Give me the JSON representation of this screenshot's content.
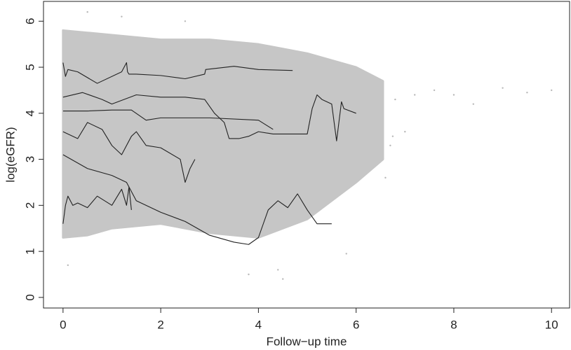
{
  "chart_data": {
    "type": "line",
    "x_label": "Follow−up time",
    "y_label": "log(eGFR)",
    "xlim": [
      -0.4,
      10.37
    ],
    "ylim": [
      -0.23,
      6.43
    ],
    "xticks": [
      0,
      2,
      4,
      6,
      8,
      10
    ],
    "yticks": [
      0,
      1,
      2,
      3,
      4,
      5,
      6
    ],
    "series": [
      {
        "type": "band",
        "color": "#c6c6c6",
        "x": [
          0,
          0.5,
          1,
          2,
          3,
          4,
          5,
          6,
          6.55
        ],
        "upper": [
          5.8,
          5.75,
          5.7,
          5.6,
          5.6,
          5.5,
          5.3,
          5.0,
          4.7
        ],
        "lower": [
          1.3,
          1.35,
          1.5,
          1.6,
          1.4,
          1.3,
          1.7,
          2.5,
          3.0
        ]
      },
      {
        "type": "scatter",
        "color": "#b8b8b8",
        "x": [
          6.7,
          6.8,
          7.0,
          7.2,
          7.6,
          8.0,
          8.4,
          9.0,
          9.5,
          10.0,
          6.75,
          0.1,
          4.5,
          3.8,
          5.8,
          1.2,
          2.5,
          0.5,
          6.6,
          4.4
        ],
        "values": [
          3.3,
          4.3,
          3.6,
          4.4,
          4.5,
          4.4,
          4.2,
          4.55,
          4.45,
          4.5,
          3.5,
          0.7,
          0.4,
          0.5,
          0.95,
          6.1,
          6.0,
          6.2,
          2.6,
          0.6
        ]
      },
      {
        "type": "line",
        "color": "#222222",
        "x": [
          0,
          0.05,
          0.1,
          0.3,
          0.7,
          1.2,
          1.3,
          1.32,
          1.35,
          1.5,
          2.0,
          2.5,
          2.9,
          2.92,
          3.5,
          4.0,
          4.7
        ],
        "values": [
          5.1,
          4.8,
          4.95,
          4.9,
          4.65,
          4.9,
          5.1,
          4.9,
          4.85,
          4.85,
          4.82,
          4.75,
          4.85,
          4.95,
          5.02,
          4.95,
          4.93
        ]
      },
      {
        "type": "line",
        "color": "#222222",
        "x": [
          0,
          0.4,
          0.8,
          1.0,
          1.5,
          2.0,
          2.5,
          2.9,
          3.1,
          3.2,
          3.3,
          3.4,
          3.6,
          3.8,
          4.0,
          4.3,
          5.0,
          5.1,
          5.2,
          5.3,
          5.5,
          5.6,
          5.7,
          5.75,
          6.0
        ],
        "values": [
          4.35,
          4.45,
          4.3,
          4.2,
          4.4,
          4.35,
          4.35,
          4.3,
          4.0,
          3.9,
          3.8,
          3.45,
          3.45,
          3.5,
          3.6,
          3.55,
          3.55,
          4.1,
          4.4,
          4.3,
          4.2,
          3.4,
          4.25,
          4.1,
          4.0
        ]
      },
      {
        "type": "line",
        "color": "#222222",
        "x": [
          0,
          0.5,
          1.0,
          1.4,
          1.7,
          2.0,
          3.0,
          4.0,
          4.3
        ],
        "values": [
          4.05,
          4.05,
          4.07,
          4.07,
          3.85,
          3.9,
          3.9,
          3.85,
          3.65
        ]
      },
      {
        "type": "line",
        "color": "#222222",
        "x": [
          0,
          0.3,
          0.5,
          0.8,
          1.0,
          1.2,
          1.4,
          1.5,
          1.7,
          2.0,
          2.4,
          2.5,
          2.6,
          2.7
        ],
        "values": [
          3.6,
          3.45,
          3.8,
          3.65,
          3.3,
          3.1,
          3.5,
          3.6,
          3.3,
          3.25,
          3.0,
          2.5,
          2.8,
          3.0
        ]
      },
      {
        "type": "line",
        "color": "#222222",
        "x": [
          0,
          0.5,
          1.0,
          1.3,
          1.5,
          2.0,
          2.5,
          3.0,
          3.5,
          3.8,
          4.0,
          4.2,
          4.4,
          4.6,
          4.8,
          5.0,
          5.2,
          5.5
        ],
        "values": [
          3.1,
          2.8,
          2.65,
          2.5,
          2.1,
          1.85,
          1.65,
          1.35,
          1.2,
          1.15,
          1.3,
          1.9,
          2.1,
          1.95,
          2.25,
          1.9,
          1.6,
          1.6
        ]
      },
      {
        "type": "line",
        "color": "#222222",
        "x": [
          0,
          0.05,
          0.1,
          0.2,
          0.3,
          0.5,
          0.7,
          1.0,
          1.2,
          1.3,
          1.35,
          1.4
        ],
        "values": [
          1.6,
          2.0,
          2.2,
          2.0,
          2.05,
          1.95,
          2.2,
          2.0,
          2.35,
          2.0,
          2.4,
          1.9
        ]
      }
    ]
  }
}
